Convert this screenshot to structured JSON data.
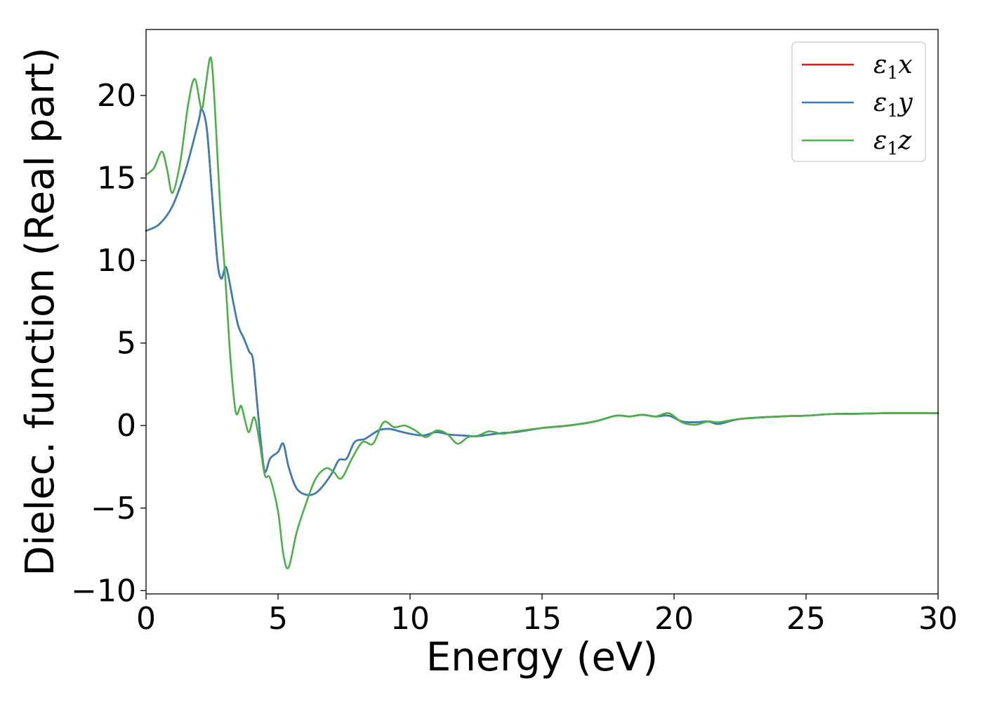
{
  "chart_data": {
    "type": "line",
    "title": "",
    "xlabel": "Energy (eV)",
    "ylabel": "Dielec. function (Real part)",
    "xlim": [
      0,
      30
    ],
    "ylim": [
      -10.2,
      24
    ],
    "xticks": [
      0,
      5,
      10,
      15,
      20,
      25,
      30
    ],
    "yticks": [
      -10,
      -5,
      0,
      5,
      10,
      15,
      20
    ],
    "xtick_labels": [
      "0",
      "5",
      "10",
      "15",
      "20",
      "25",
      "30"
    ],
    "ytick_labels": [
      "−10",
      "−5",
      "0",
      "5",
      "10",
      "15",
      "20"
    ],
    "grid": false,
    "legend_position": "top-right",
    "series": [
      {
        "name": "ε₁x",
        "legend": {
          "symbol": "ε",
          "sub": "1",
          "axis": "x"
        },
        "color": "#e41a1c",
        "x": [
          0,
          0.5,
          1.0,
          1.5,
          2.0,
          2.1,
          2.3,
          2.5,
          2.7,
          2.85,
          3.0,
          3.1,
          3.3,
          3.5,
          3.7,
          3.9,
          4.05,
          4.2,
          4.35,
          4.5,
          4.7,
          5.0,
          5.2,
          5.4,
          5.7,
          6.1,
          6.5,
          7.0,
          7.3,
          7.6,
          7.9,
          8.3,
          8.8,
          9.2,
          9.6,
          10.0,
          10.5,
          11.0,
          11.5,
          12.0,
          12.5,
          13.0,
          13.5,
          14.0,
          15.0,
          16.0,
          17.0,
          17.8,
          18.3,
          18.8,
          19.3,
          19.8,
          20.3,
          20.8,
          21.3,
          21.7,
          22.5,
          24.0,
          25.0,
          26.0,
          27.0,
          28.0,
          29.0,
          30.0
        ],
        "values": [
          11.8,
          12.2,
          13.3,
          15.5,
          18.5,
          19.2,
          18.0,
          14.0,
          10.0,
          8.9,
          9.6,
          9.2,
          7.5,
          6.0,
          5.3,
          4.5,
          4.0,
          1.5,
          -1.0,
          -2.8,
          -2.0,
          -1.6,
          -1.1,
          -2.5,
          -3.8,
          -4.2,
          -4.0,
          -3.0,
          -2.1,
          -2.0,
          -1.0,
          -0.8,
          -0.3,
          -0.2,
          -0.35,
          -0.5,
          -0.6,
          -0.4,
          -0.55,
          -0.6,
          -0.65,
          -0.55,
          -0.45,
          -0.4,
          -0.15,
          0.0,
          0.25,
          0.6,
          0.55,
          0.65,
          0.55,
          0.6,
          0.25,
          0.2,
          0.25,
          0.1,
          0.4,
          0.55,
          0.6,
          0.7,
          0.72,
          0.75,
          0.75,
          0.75
        ]
      },
      {
        "name": "ε₁y",
        "legend": {
          "symbol": "ε",
          "sub": "1",
          "axis": "y"
        },
        "color": "#377eb8",
        "x": [
          0,
          0.5,
          1.0,
          1.5,
          2.0,
          2.1,
          2.3,
          2.5,
          2.7,
          2.85,
          3.0,
          3.1,
          3.3,
          3.5,
          3.7,
          3.9,
          4.05,
          4.2,
          4.35,
          4.5,
          4.7,
          5.0,
          5.2,
          5.4,
          5.7,
          6.1,
          6.5,
          7.0,
          7.3,
          7.6,
          7.9,
          8.3,
          8.8,
          9.2,
          9.6,
          10.0,
          10.5,
          11.0,
          11.5,
          12.0,
          12.5,
          13.0,
          13.5,
          14.0,
          15.0,
          16.0,
          17.0,
          17.8,
          18.3,
          18.8,
          19.3,
          19.8,
          20.3,
          20.8,
          21.3,
          21.7,
          22.5,
          24.0,
          25.0,
          26.0,
          27.0,
          28.0,
          29.0,
          30.0
        ],
        "values": [
          11.8,
          12.2,
          13.3,
          15.5,
          18.5,
          19.2,
          18.0,
          14.0,
          10.0,
          8.9,
          9.6,
          9.2,
          7.5,
          6.0,
          5.3,
          4.5,
          4.0,
          1.5,
          -1.0,
          -2.8,
          -2.0,
          -1.6,
          -1.1,
          -2.5,
          -3.8,
          -4.2,
          -4.0,
          -3.0,
          -2.1,
          -2.0,
          -1.0,
          -0.8,
          -0.3,
          -0.2,
          -0.35,
          -0.5,
          -0.6,
          -0.4,
          -0.55,
          -0.6,
          -0.65,
          -0.55,
          -0.45,
          -0.4,
          -0.15,
          0.0,
          0.25,
          0.6,
          0.55,
          0.65,
          0.55,
          0.6,
          0.25,
          0.2,
          0.25,
          0.1,
          0.4,
          0.55,
          0.6,
          0.7,
          0.72,
          0.75,
          0.75,
          0.75
        ]
      },
      {
        "name": "ε₁z",
        "legend": {
          "symbol": "ε",
          "sub": "1",
          "axis": "z"
        },
        "color": "#4daf4a",
        "x": [
          0,
          0.3,
          0.6,
          0.8,
          1.0,
          1.3,
          1.6,
          1.85,
          2.1,
          2.25,
          2.45,
          2.6,
          2.8,
          3.0,
          3.2,
          3.4,
          3.6,
          3.75,
          3.9,
          4.1,
          4.3,
          4.5,
          4.7,
          5.0,
          5.2,
          5.4,
          5.7,
          6.0,
          6.4,
          6.8,
          7.1,
          7.4,
          7.8,
          8.2,
          8.6,
          9.0,
          9.4,
          9.8,
          10.2,
          10.6,
          11.0,
          11.4,
          11.8,
          12.2,
          12.6,
          13.0,
          13.5,
          14.0,
          15.0,
          16.0,
          17.0,
          17.8,
          18.3,
          18.8,
          19.3,
          19.8,
          20.3,
          20.8,
          21.3,
          21.7,
          22.5,
          24.0,
          25.0,
          26.0,
          27.0,
          28.0,
          29.0,
          30.0
        ],
        "values": [
          15.2,
          15.6,
          16.6,
          15.5,
          14.1,
          16.0,
          19.5,
          21.0,
          19.2,
          20.5,
          22.3,
          19.5,
          13.5,
          9.0,
          4.0,
          0.8,
          1.2,
          0.3,
          -0.4,
          0.5,
          -1.0,
          -3.0,
          -3.2,
          -5.2,
          -7.8,
          -8.6,
          -6.5,
          -5.0,
          -3.3,
          -2.6,
          -2.8,
          -3.2,
          -2.0,
          -1.0,
          -1.1,
          0.2,
          -0.1,
          0.0,
          -0.3,
          -0.7,
          -0.3,
          -0.5,
          -1.1,
          -0.7,
          -0.6,
          -0.35,
          -0.5,
          -0.35,
          -0.15,
          0.0,
          0.25,
          0.6,
          0.55,
          0.65,
          0.55,
          0.75,
          0.2,
          0.05,
          0.25,
          0.2,
          0.4,
          0.55,
          0.6,
          0.7,
          0.72,
          0.75,
          0.75,
          0.75
        ]
      }
    ]
  }
}
